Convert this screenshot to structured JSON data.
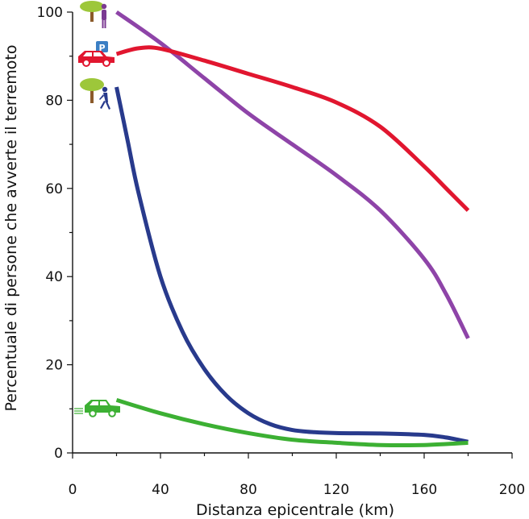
{
  "chart_data": {
    "type": "line",
    "title": "",
    "xlabel": "Distanza epicentrale (km)",
    "ylabel": "Percentuale di persone che avverte il terremoto",
    "xlim": [
      0,
      200
    ],
    "ylim": [
      0,
      100
    ],
    "xticks": [
      0,
      40,
      80,
      120,
      160,
      200
    ],
    "yticks": [
      0,
      20,
      40,
      60,
      80,
      100
    ],
    "grid": false,
    "series": [
      {
        "name": "persone ferme all'aperto",
        "icon": "person-standing-tree-icon",
        "color": "#8e44a8",
        "x": [
          20,
          40,
          60,
          80,
          100,
          120,
          140,
          160,
          170,
          180
        ],
        "y": [
          100,
          93,
          85,
          77,
          70,
          63,
          55,
          44,
          36,
          26
        ]
      },
      {
        "name": "persone in auto parcheggiata",
        "icon": "parked-car-icon",
        "color": "#e1162f",
        "x": [
          20,
          30,
          40,
          60,
          80,
          100,
          120,
          140,
          160,
          170,
          180
        ],
        "y": [
          90.5,
          91.8,
          91.7,
          89,
          86,
          83,
          79.5,
          74,
          65,
          60,
          55
        ]
      },
      {
        "name": "persone che camminano all'aperto",
        "icon": "person-walking-tree-icon",
        "color": "#283a8c",
        "x": [
          20,
          25,
          30,
          40,
          50,
          60,
          70,
          80,
          90,
          100,
          110,
          120,
          140,
          160,
          170,
          180
        ],
        "y": [
          83,
          71,
          59,
          40,
          27.5,
          19,
          13,
          9,
          6.5,
          5.2,
          4.7,
          4.5,
          4.4,
          4.1,
          3.5,
          2.5
        ]
      },
      {
        "name": "persone in auto in movimento",
        "icon": "moving-car-icon",
        "color": "#3cb033",
        "x": [
          20,
          40,
          60,
          80,
          100,
          120,
          140,
          160,
          180
        ],
        "y": [
          12,
          9,
          6.5,
          4.5,
          3,
          2.3,
          1.8,
          1.8,
          2.3
        ]
      }
    ]
  }
}
